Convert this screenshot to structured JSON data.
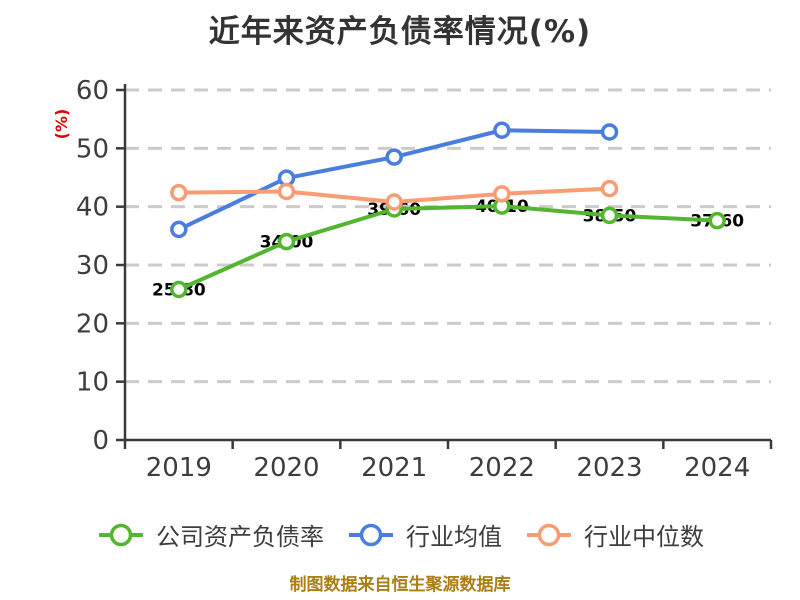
{
  "chart_data": {
    "type": "line",
    "title": "近年来资产负债率情况(%)",
    "ylabel": "(%)",
    "xlabel": "",
    "categories": [
      "2019",
      "2020",
      "2021",
      "2022",
      "2023",
      "2024"
    ],
    "ylim": [
      0,
      60
    ],
    "y_ticks": [
      0,
      10,
      20,
      30,
      40,
      50,
      60
    ],
    "grid": "horizontal-dashed",
    "legend_position": "bottom",
    "series": [
      {
        "name": "公司资产负债率",
        "color": "#52b62e",
        "values": [
          25.8,
          34.0,
          39.6,
          40.1,
          38.5,
          37.6
        ],
        "point_labels": "two-decimal, mostly hidden behind line"
      },
      {
        "name": "行业均值",
        "color": "#4a7ede",
        "values": [
          36.1,
          44.9,
          48.5,
          53.1,
          52.8,
          null
        ],
        "point_labels": null
      },
      {
        "name": "行业中位数",
        "color": "#f99c73",
        "values": [
          42.4,
          42.6,
          40.8,
          42.2,
          43.1,
          null
        ],
        "point_labels": null
      }
    ],
    "marker": "circle-white-fill-colored-ring"
  },
  "colors": {
    "title_text": "#333333",
    "axis": "#3a3a3a",
    "gridline": "#cbcbcb",
    "ylabel_text": "#e60000",
    "source_text": "#ab7f12"
  },
  "source_note": "制图数据来自恒生聚源数据库"
}
